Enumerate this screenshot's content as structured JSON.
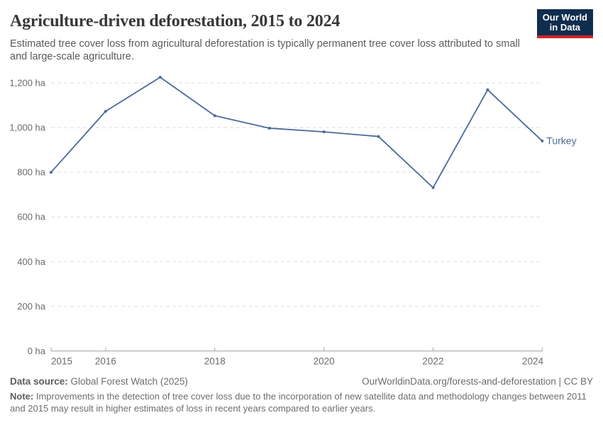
{
  "header": {
    "title": "Agriculture-driven deforestation, 2015 to 2024",
    "subtitle": "Estimated tree cover loss from agricultural deforestation is typically permanent tree cover loss attributed to small and large-scale agriculture."
  },
  "logo": {
    "line1": "Our World",
    "line2": "in Data",
    "bg_color": "#0f2d4e",
    "stripe_color": "#d2232d"
  },
  "chart_data": {
    "type": "line",
    "title": "Agriculture-driven deforestation, 2015 to 2024",
    "x": [
      2015,
      2016,
      2017,
      2018,
      2019,
      2020,
      2021,
      2022,
      2023,
      2024
    ],
    "series": [
      {
        "name": "Turkey",
        "values": [
          800,
          1073,
          1225,
          1053,
          997,
          981,
          960,
          731,
          1169,
          940
        ]
      }
    ],
    "unit": "ha",
    "xlabel": "",
    "ylabel": "",
    "ylim": [
      0,
      1280
    ],
    "y_ticks": [
      0,
      200,
      400,
      600,
      800,
      1000,
      1200
    ],
    "x_ticks": [
      2015,
      2016,
      2018,
      2020,
      2022,
      2024
    ],
    "grid": true,
    "legend_position": "end-of-line",
    "colors": {
      "line": "#4C6A9C",
      "series_label": "#4C6A9C",
      "gridline": "#dedede",
      "axis": "#a5a5a5",
      "tick_label": "#6b6b6b"
    }
  },
  "footer": {
    "datasource_label": "Data source:",
    "datasource_value": " Global Forest Watch (2025)",
    "rights": "OurWorldinData.org/forests-and-deforestation | CC BY",
    "note_label": "Note:",
    "note_text": " Improvements in the detection of tree cover loss due to the incorporation of new satellite data and methodology changes between 2011 and 2015 may result in higher estimates of loss in recent years compared to earlier years."
  }
}
